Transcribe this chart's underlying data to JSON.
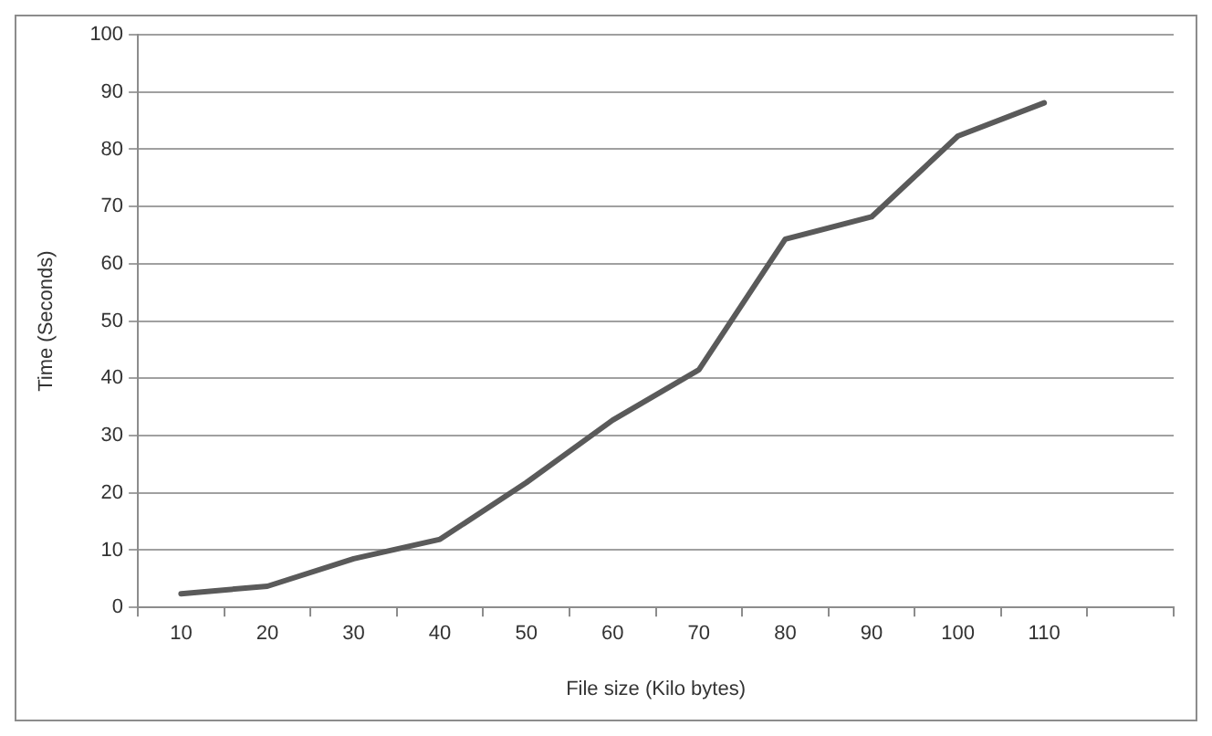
{
  "chart_data": {
    "type": "line",
    "xlabel": "File size (Kilo bytes)",
    "ylabel": "Time (Seconds)",
    "categories": [
      "10",
      "20",
      "30",
      "40",
      "50",
      "60",
      "70",
      "80",
      "90",
      "100",
      "110",
      null
    ],
    "series": [
      {
        "color": "#5a5a5a",
        "values": [
          2.4,
          3.7,
          8.5,
          11.9,
          21.8,
          32.7,
          41.5,
          64.3,
          68.2,
          82.3,
          88.1,
          null
        ]
      }
    ],
    "ylim": [
      0,
      100
    ],
    "yticks": [
      0,
      10,
      20,
      30,
      40,
      50,
      60,
      70,
      80,
      90,
      100
    ],
    "grid": "y",
    "legend": false,
    "marker": "none",
    "line_style": "solid"
  }
}
